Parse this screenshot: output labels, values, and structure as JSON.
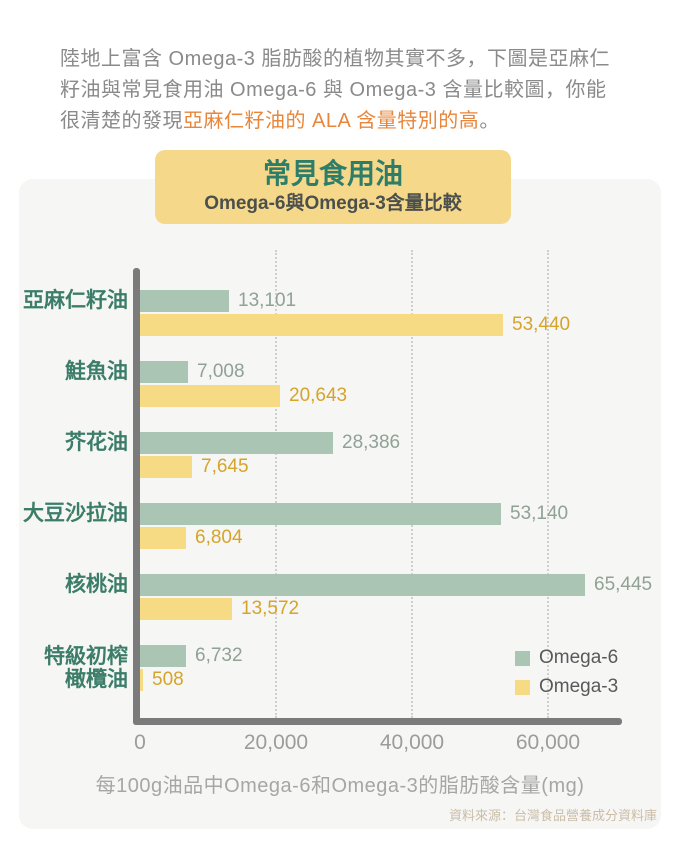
{
  "intro": {
    "text_before": "陸地上富含 Omega-3 脂肪酸的植物其實不多，下圖是亞麻仁籽油與常見食用油 Omega-6 與 Omega-3 含量比較圖，你能很清楚的發現",
    "text_highlight": "亞麻仁籽油的 ALA 含量特別的高",
    "text_after": "。",
    "highlight_color": "#e8863b"
  },
  "title_box": {
    "title": "常見食用油",
    "subtitle": "Omega-6與Omega-3含量比較",
    "background": "#f6d88a",
    "title_color": "#2e7d68"
  },
  "chart_data": {
    "type": "bar",
    "orientation": "horizontal",
    "title": "常見食用油 Omega-6與Omega-3含量比較",
    "categories": [
      "亞麻仁籽油",
      "鮭魚油",
      "芥花油",
      "大豆沙拉油",
      "核桃油",
      "特級初榨橄欖油"
    ],
    "category_lines": [
      [
        "亞麻仁籽油"
      ],
      [
        "鮭魚油"
      ],
      [
        "芥花油"
      ],
      [
        "大豆沙拉油"
      ],
      [
        "核桃油"
      ],
      [
        "特級初榨",
        "橄欖油"
      ]
    ],
    "series": [
      {
        "name": "Omega-6",
        "color": "#aac5b4",
        "label_color": "#90a195",
        "values": [
          13101,
          7008,
          28386,
          53140,
          65445,
          6732
        ]
      },
      {
        "name": "Omega-3",
        "color": "#f7db84",
        "label_color": "#d6a42b",
        "values": [
          53440,
          20643,
          7645,
          6804,
          13572,
          508
        ]
      }
    ],
    "value_labels": [
      "13,101",
      "53,440",
      "7,008",
      "20,643",
      "28,386",
      "7,645",
      "53,140",
      "6,804",
      "65,445",
      "13,572",
      "6,732",
      "508"
    ],
    "xlabel": "每100g油品中Omega-6和Omega-3的脂肪酸含量(mg)",
    "x_ticks": [
      0,
      20000,
      40000,
      60000
    ],
    "x_tick_labels": [
      "0",
      "20,000",
      "40,000",
      "60,000"
    ],
    "xlim": [
      0,
      68000
    ],
    "grid": "vertical-dotted",
    "legend_position": "inside-bottom-right",
    "axis_color": "#7b7b7b",
    "grid_color": "#cfcfcf"
  },
  "source": "資料來源：台灣食品營養成分資料庫"
}
